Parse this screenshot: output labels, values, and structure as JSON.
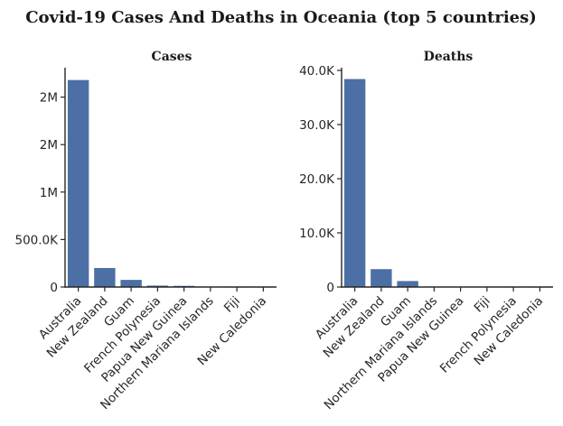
{
  "title": "Covid-19 Cases And Deaths in Oceania (top 5 countries)",
  "colors": {
    "bar": "#4c6fa5",
    "axis": "#262626",
    "text": "#1a1a1a"
  },
  "chart_data": [
    {
      "type": "bar",
      "title": "Cases",
      "xlabel": "",
      "ylabel": "",
      "categories": [
        "Australia",
        "New Zealand",
        "Guam",
        "French Polynesia",
        "Papua New Guinea",
        "Northern Mariana Islands",
        "Fiji",
        "New Caledonia"
      ],
      "values": [
        2180000,
        200000,
        75000,
        15000,
        12000,
        1500,
        300,
        100
      ],
      "ylim": [
        0,
        2310000
      ],
      "yticks": [
        0,
        500000,
        1000000,
        1500000,
        2000000
      ],
      "ytick_labels": [
        "0",
        "500.0K",
        "1M",
        "2M",
        "2M"
      ],
      "grid": false,
      "legend": "none"
    },
    {
      "type": "bar",
      "title": "Deaths",
      "xlabel": "",
      "ylabel": "",
      "categories": [
        "Australia",
        "New Zealand",
        "Guam",
        "Northern Mariana Islands",
        "Papua New Guinea",
        "Fiji",
        "French Polynesia",
        "New Caledonia"
      ],
      "values": [
        38400,
        3300,
        1100,
        50,
        30,
        20,
        10,
        5
      ],
      "ylim": [
        0,
        40500
      ],
      "yticks": [
        0,
        10000,
        20000,
        30000,
        40000
      ],
      "ytick_labels": [
        "0",
        "10.0K",
        "20.0K",
        "30.0K",
        "40.0K"
      ],
      "grid": false,
      "legend": "none"
    }
  ]
}
